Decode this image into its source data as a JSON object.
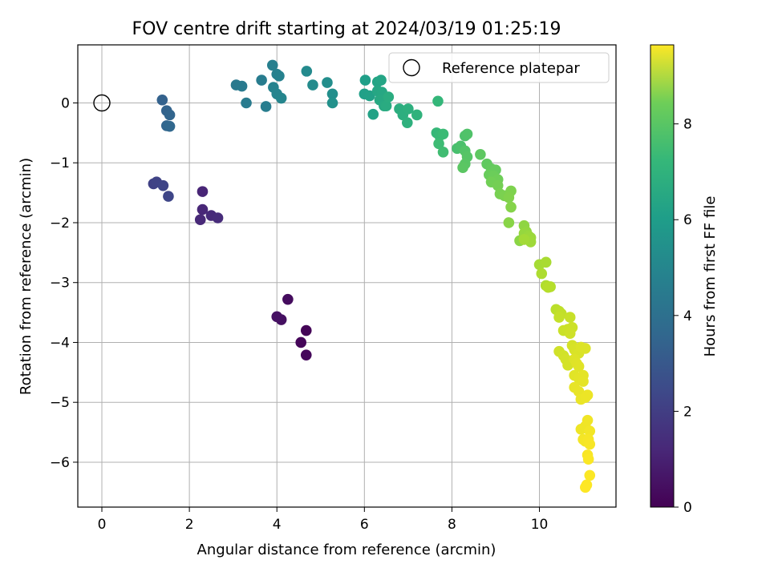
{
  "chart_data": {
    "type": "scatter",
    "title": "FOV centre drift starting at 2024/03/19 01:25:19",
    "xlabel": "Angular distance from reference (arcmin)",
    "ylabel": "Rotation from reference (arcmin)",
    "xlim": [
      -0.55,
      11.75
    ],
    "ylim": [
      -6.75,
      0.97
    ],
    "xticks": [
      0,
      2,
      4,
      6,
      8,
      10
    ],
    "yticks": [
      0,
      -1,
      -2,
      -3,
      -4,
      -5,
      -6
    ],
    "xtick_labels": [
      "0",
      "2",
      "4",
      "6",
      "8",
      "10"
    ],
    "ytick_labels": [
      "0",
      "−1",
      "−2",
      "−3",
      "−4",
      "−5",
      "−6"
    ],
    "grid": true,
    "legend": {
      "placement": "top-right",
      "label": "Reference platepar"
    },
    "reference_point": {
      "x": 0,
      "y": 0
    },
    "colorbar": {
      "label": "Hours from first FF file",
      "colormap": "viridis",
      "range": [
        0,
        9.65
      ],
      "ticks": [
        0,
        2,
        4,
        6,
        8
      ],
      "tick_labels": [
        "0",
        "2",
        "4",
        "6",
        "8"
      ]
    },
    "series": [
      {
        "points": [
          [
            4.67,
            -3.8,
            0.1
          ],
          [
            4.55,
            -4.0,
            0.15
          ],
          [
            4.67,
            -4.21,
            0.2
          ],
          [
            4.25,
            -3.28,
            0.3
          ],
          [
            4.1,
            -3.62,
            0.4
          ],
          [
            4.0,
            -3.57,
            0.45
          ],
          [
            2.3,
            -1.48,
            1.0
          ],
          [
            2.3,
            -1.78,
            1.05
          ],
          [
            2.25,
            -1.95,
            1.1
          ],
          [
            2.5,
            -1.88,
            1.15
          ],
          [
            2.65,
            -1.92,
            1.2
          ],
          [
            1.18,
            -1.35,
            1.9
          ],
          [
            1.25,
            -1.32,
            1.95
          ],
          [
            1.4,
            -1.38,
            2.0
          ],
          [
            1.52,
            -1.56,
            2.05
          ],
          [
            1.38,
            0.05,
            3.0
          ],
          [
            1.48,
            -0.13,
            3.05
          ],
          [
            1.55,
            -0.2,
            3.1
          ],
          [
            1.48,
            -0.38,
            3.15
          ],
          [
            1.55,
            -0.39,
            3.2
          ],
          [
            3.07,
            0.3,
            3.9
          ],
          [
            3.2,
            0.28,
            3.95
          ],
          [
            3.3,
            0.0,
            4.0
          ],
          [
            3.65,
            0.38,
            4.05
          ],
          [
            3.75,
            -0.06,
            4.1
          ],
          [
            3.9,
            0.63,
            4.15
          ],
          [
            4.0,
            0.48,
            4.2
          ],
          [
            4.05,
            0.45,
            4.25
          ],
          [
            3.92,
            0.26,
            4.3
          ],
          [
            4.0,
            0.15,
            4.35
          ],
          [
            4.1,
            0.08,
            4.4
          ],
          [
            4.68,
            0.53,
            4.6
          ],
          [
            4.82,
            0.3,
            4.65
          ],
          [
            5.15,
            0.34,
            4.75
          ],
          [
            5.27,
            0.15,
            4.8
          ],
          [
            5.27,
            0.0,
            4.85
          ],
          [
            6.02,
            0.38,
            5.4
          ],
          [
            6.0,
            0.15,
            5.45
          ],
          [
            6.12,
            0.12,
            5.5
          ],
          [
            6.2,
            -0.19,
            5.55
          ],
          [
            6.3,
            0.35,
            5.6
          ],
          [
            6.38,
            0.38,
            5.65
          ],
          [
            6.3,
            0.2,
            5.7
          ],
          [
            6.4,
            0.18,
            5.75
          ],
          [
            6.35,
            0.05,
            5.8
          ],
          [
            6.45,
            -0.05,
            5.85
          ],
          [
            6.5,
            -0.05,
            5.9
          ],
          [
            6.55,
            0.1,
            5.95
          ],
          [
            6.8,
            -0.1,
            6.0
          ],
          [
            6.88,
            -0.2,
            6.05
          ],
          [
            7.0,
            -0.1,
            6.1
          ],
          [
            6.98,
            -0.33,
            6.15
          ],
          [
            7.2,
            -0.2,
            6.2
          ],
          [
            7.68,
            0.03,
            6.4
          ],
          [
            7.65,
            -0.5,
            6.45
          ],
          [
            7.72,
            -0.55,
            6.5
          ],
          [
            7.8,
            -0.52,
            6.55
          ],
          [
            7.7,
            -0.68,
            6.6
          ],
          [
            7.8,
            -0.82,
            6.65
          ],
          [
            8.12,
            -0.76,
            6.8
          ],
          [
            8.2,
            -0.72,
            6.85
          ],
          [
            8.3,
            -0.55,
            6.9
          ],
          [
            8.35,
            -0.52,
            6.95
          ],
          [
            8.3,
            -0.8,
            7.0
          ],
          [
            8.35,
            -0.9,
            7.05
          ],
          [
            8.3,
            -1.02,
            7.1
          ],
          [
            8.25,
            -1.08,
            7.15
          ],
          [
            8.65,
            -0.86,
            7.2
          ],
          [
            8.8,
            -1.02,
            7.25
          ],
          [
            8.9,
            -1.1,
            7.3
          ],
          [
            9.0,
            -1.12,
            7.35
          ],
          [
            8.85,
            -1.2,
            7.4
          ],
          [
            8.95,
            -1.22,
            7.45
          ],
          [
            9.05,
            -1.28,
            7.5
          ],
          [
            8.9,
            -1.32,
            7.55
          ],
          [
            9.05,
            -1.38,
            7.6
          ],
          [
            9.1,
            -1.52,
            7.65
          ],
          [
            9.2,
            -1.55,
            7.7
          ],
          [
            9.35,
            -1.47,
            7.75
          ],
          [
            9.3,
            -1.58,
            7.8
          ],
          [
            9.35,
            -1.74,
            7.85
          ],
          [
            9.3,
            -2.0,
            7.9
          ],
          [
            9.55,
            -2.3,
            7.95
          ],
          [
            9.65,
            -2.05,
            8.0
          ],
          [
            9.7,
            -2.15,
            8.05
          ],
          [
            9.65,
            -2.18,
            8.1
          ],
          [
            9.75,
            -2.22,
            8.15
          ],
          [
            9.8,
            -2.25,
            8.2
          ],
          [
            9.8,
            -2.32,
            8.25
          ],
          [
            9.65,
            -2.28,
            8.3
          ],
          [
            10.0,
            -2.7,
            8.35
          ],
          [
            10.15,
            -2.66,
            8.4
          ],
          [
            10.05,
            -2.85,
            8.45
          ],
          [
            10.15,
            -3.05,
            8.5
          ],
          [
            10.25,
            -3.07,
            8.55
          ],
          [
            10.2,
            -3.08,
            8.6
          ],
          [
            10.38,
            -3.45,
            8.65
          ],
          [
            10.45,
            -3.48,
            8.7
          ],
          [
            10.5,
            -3.52,
            8.75
          ],
          [
            10.45,
            -3.58,
            8.8
          ],
          [
            10.7,
            -3.58,
            8.85
          ],
          [
            10.55,
            -3.8,
            8.88
          ],
          [
            10.65,
            -3.78,
            8.9
          ],
          [
            10.75,
            -3.75,
            8.92
          ],
          [
            10.7,
            -3.85,
            8.95
          ],
          [
            10.45,
            -4.15,
            8.98
          ],
          [
            10.55,
            -4.22,
            9.0
          ],
          [
            10.6,
            -4.28,
            9.02
          ],
          [
            10.65,
            -4.38,
            9.04
          ],
          [
            10.75,
            -4.05,
            9.06
          ],
          [
            10.8,
            -4.12,
            9.08
          ],
          [
            10.85,
            -4.15,
            9.1
          ],
          [
            10.9,
            -4.18,
            9.12
          ],
          [
            10.95,
            -4.08,
            9.14
          ],
          [
            11.05,
            -4.1,
            9.16
          ],
          [
            10.8,
            -4.28,
            9.18
          ],
          [
            10.85,
            -4.35,
            9.2
          ],
          [
            10.9,
            -4.4,
            9.22
          ],
          [
            10.8,
            -4.55,
            9.24
          ],
          [
            10.9,
            -4.6,
            9.26
          ],
          [
            11.0,
            -4.55,
            9.28
          ],
          [
            11.0,
            -4.65,
            9.3
          ],
          [
            10.8,
            -4.75,
            9.32
          ],
          [
            10.9,
            -4.82,
            9.34
          ],
          [
            10.95,
            -4.95,
            9.36
          ],
          [
            11.05,
            -4.92,
            9.38
          ],
          [
            11.1,
            -4.88,
            9.4
          ],
          [
            10.95,
            -5.45,
            9.42
          ],
          [
            11.05,
            -5.4,
            9.44
          ],
          [
            11.1,
            -5.3,
            9.46
          ],
          [
            11.15,
            -5.48,
            9.48
          ],
          [
            11.0,
            -5.62,
            9.5
          ],
          [
            11.05,
            -5.65,
            9.52
          ],
          [
            11.12,
            -5.62,
            9.54
          ],
          [
            11.15,
            -5.7,
            9.56
          ],
          [
            11.1,
            -5.88,
            9.58
          ],
          [
            11.12,
            -5.95,
            9.6
          ],
          [
            11.15,
            -6.22,
            9.62
          ],
          [
            11.08,
            -6.38,
            9.63
          ],
          [
            11.05,
            -6.42,
            9.65
          ]
        ]
      }
    ]
  }
}
